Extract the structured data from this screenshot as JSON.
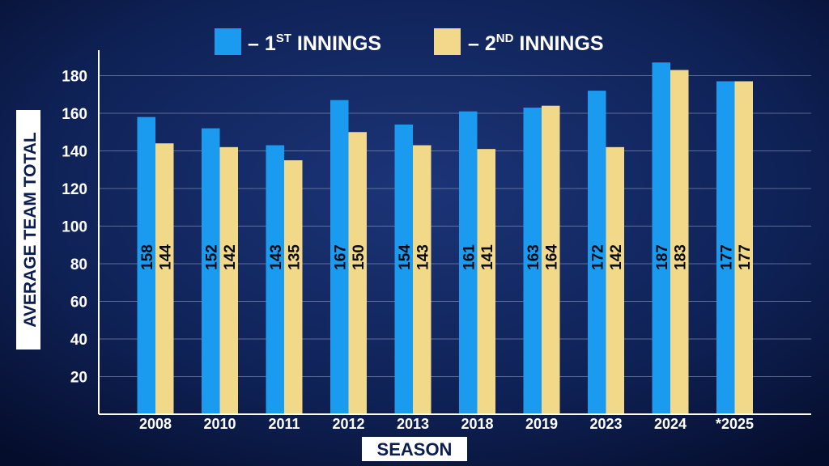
{
  "chart_data": {
    "type": "bar",
    "title": "",
    "xlabel": "SEASON",
    "ylabel": "AVERAGE TEAM TOTAL",
    "categories": [
      "2008",
      "2010",
      "2011",
      "2012",
      "2013",
      "2018",
      "2019",
      "2023",
      "2024",
      "*2025"
    ],
    "series": [
      {
        "name": "– 1ST INNINGS",
        "legend_text": "– 1",
        "legend_sup": "ST",
        "legend_tail": " INNINGS",
        "color": "#1a9bf0",
        "values": [
          158,
          152,
          143,
          167,
          154,
          161,
          163,
          172,
          187,
          177
        ],
        "labels": [
          "158",
          "152",
          "143",
          "167",
          "154",
          "161",
          "163",
          "172",
          "187",
          "177"
        ]
      },
      {
        "name": "– 2ND INNINGS",
        "legend_text": "– 2",
        "legend_sup": "ND",
        "legend_tail": " INNINGS",
        "color": "#f2d98a",
        "values": [
          144,
          142,
          135,
          150,
          143,
          141,
          164,
          142,
          183,
          177
        ],
        "labels": [
          "144",
          "142",
          "135",
          "150",
          "143",
          "141",
          "164",
          "142",
          "183",
          "177"
        ]
      }
    ],
    "yticks": [
      "20",
      "40",
      "60",
      "80",
      "100",
      "120",
      "140",
      "160",
      "180"
    ],
    "ylim": [
      0,
      200
    ],
    "grid": true,
    "legend_position": "top-center",
    "colors": {
      "background_top": "#14285e",
      "background_bottom": "#050d2c",
      "grid": "#9aa6c4",
      "axis": "#ffffff",
      "label_box": "#ffffff",
      "label_box_text": "#0b1d4f"
    }
  }
}
